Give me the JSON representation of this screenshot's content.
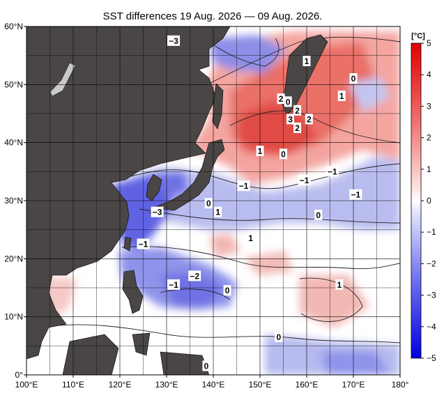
{
  "title": "SST differences 19 Aug. 2026 — 09 Aug. 2026.",
  "colorbar": {
    "unit": "[°C]",
    "tick_labels": [
      "5",
      "4",
      "3",
      "2",
      "1",
      "0",
      "−1",
      "−2",
      "−3",
      "−4",
      "−5"
    ]
  },
  "axes": {
    "lon_labels": [
      "100°E",
      "110°E",
      "120°E",
      "130°E",
      "140°E",
      "150°E",
      "160°E",
      "170°E",
      "180°"
    ],
    "lat_labels": [
      "60°N",
      "50°N",
      "40°N",
      "30°N",
      "20°N",
      "10°N",
      "0°"
    ]
  },
  "contour_labels": [
    {
      "text": "−3",
      "lon": 131.5,
      "lat": 57.5
    },
    {
      "text": "1",
      "lon": 160.0,
      "lat": 54.0
    },
    {
      "text": "0",
      "lon": 170.0,
      "lat": 51.0
    },
    {
      "text": "1",
      "lon": 167.5,
      "lat": 48.0
    },
    {
      "text": "2",
      "lon": 154.5,
      "lat": 47.5
    },
    {
      "text": "0",
      "lon": 156.0,
      "lat": 47.0
    },
    {
      "text": "2",
      "lon": 158.0,
      "lat": 45.5
    },
    {
      "text": "2",
      "lon": 160.5,
      "lat": 44.0
    },
    {
      "text": "3",
      "lon": 156.5,
      "lat": 44.0
    },
    {
      "text": "2",
      "lon": 158.0,
      "lat": 42.5
    },
    {
      "text": "1",
      "lon": 150.0,
      "lat": 38.5
    },
    {
      "text": "0",
      "lon": 155.0,
      "lat": 38.0
    },
    {
      "text": "−1",
      "lon": 159.5,
      "lat": 33.5
    },
    {
      "text": "−1",
      "lon": 165.5,
      "lat": 35.0
    },
    {
      "text": "−1",
      "lon": 146.5,
      "lat": 32.5
    },
    {
      "text": "−1",
      "lon": 170.5,
      "lat": 31.0
    },
    {
      "text": "0",
      "lon": 139.0,
      "lat": 29.5
    },
    {
      "text": "−3",
      "lon": 128.0,
      "lat": 28.0
    },
    {
      "text": "1",
      "lon": 141.0,
      "lat": 28.0
    },
    {
      "text": "0",
      "lon": 162.5,
      "lat": 27.5
    },
    {
      "text": "1",
      "lon": 148.0,
      "lat": 23.5
    },
    {
      "text": "−1",
      "lon": 125.0,
      "lat": 22.5
    },
    {
      "text": "−2",
      "lon": 136.0,
      "lat": 17.0
    },
    {
      "text": "−1",
      "lon": 131.5,
      "lat": 15.5
    },
    {
      "text": "1",
      "lon": 167.0,
      "lat": 15.5
    },
    {
      "text": "0",
      "lon": 143.0,
      "lat": 14.5
    },
    {
      "text": "0",
      "lon": 154.0,
      "lat": 6.5
    },
    {
      "text": "0",
      "lon": 138.5,
      "lat": 1.5
    }
  ]
}
